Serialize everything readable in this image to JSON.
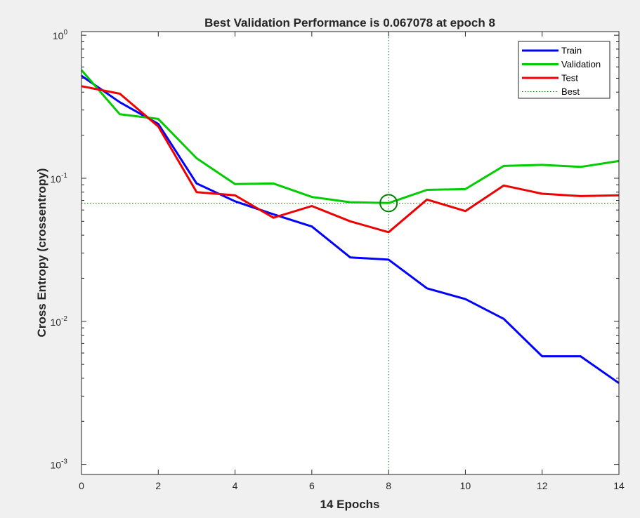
{
  "chart_data": {
    "type": "line",
    "title": "Best Validation Performance is 0.067078 at epoch 8",
    "xlabel": "14 Epochs",
    "ylabel": "Cross Entropy  (crossentropy)",
    "xlim": [
      0,
      14
    ],
    "ylim": [
      0.00085,
      1.06
    ],
    "yscale": "log",
    "x_ticks": [
      0,
      2,
      4,
      6,
      8,
      10,
      12,
      14
    ],
    "y_ticks": [
      {
        "value": 0.001,
        "base": "10",
        "exp": "-3"
      },
      {
        "value": 0.01,
        "base": "10",
        "exp": "-2"
      },
      {
        "value": 0.1,
        "base": "10",
        "exp": "-1"
      },
      {
        "value": 1,
        "base": "10",
        "exp": "0"
      }
    ],
    "x": [
      0,
      1,
      2,
      3,
      4,
      5,
      6,
      7,
      8,
      9,
      10,
      11,
      12,
      13,
      14
    ],
    "series": [
      {
        "name": "Train",
        "color": "#0000ff",
        "values": [
          0.52,
          0.34,
          0.24,
          0.092,
          0.069,
          0.056,
          0.046,
          0.028,
          0.027,
          0.017,
          0.0143,
          0.0104,
          0.0057,
          0.0057,
          0.0037
        ]
      },
      {
        "name": "Validation",
        "color": "#00cc00",
        "values": [
          0.57,
          0.28,
          0.26,
          0.138,
          0.091,
          0.092,
          0.074,
          0.068,
          0.067078,
          0.083,
          0.084,
          0.122,
          0.124,
          0.12,
          0.132
        ]
      },
      {
        "name": "Test",
        "color": "#ee0000",
        "values": [
          0.44,
          0.39,
          0.23,
          0.08,
          0.076,
          0.053,
          0.064,
          0.05,
          0.042,
          0.071,
          0.059,
          0.089,
          0.078,
          0.075,
          0.076
        ]
      }
    ],
    "best": {
      "name": "Best",
      "epoch": 8,
      "value": 0.067078,
      "color": "#008000"
    },
    "grid": false,
    "legend_position": "top-right"
  }
}
